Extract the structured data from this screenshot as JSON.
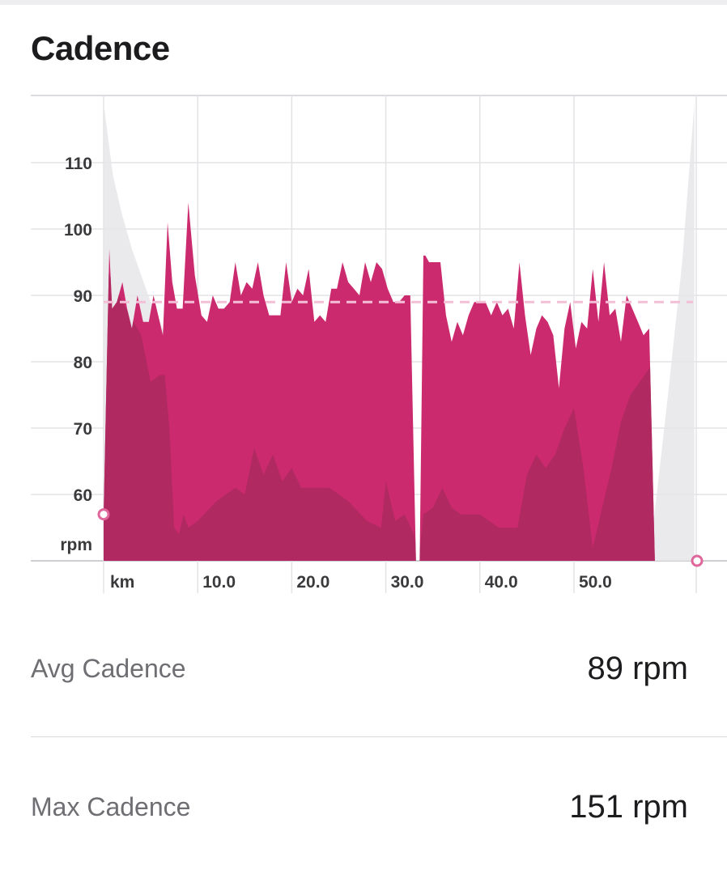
{
  "title": "Cadence",
  "chart_data": {
    "type": "area",
    "ylabel": "rpm",
    "xlabel": "km",
    "ylim": [
      50,
      120
    ],
    "xlim": [
      0,
      63
    ],
    "y_ticks": [
      60,
      70,
      80,
      90,
      100,
      110
    ],
    "x_ticks": [
      10,
      20,
      30,
      40,
      50
    ],
    "x_tick_labels": [
      "10.0",
      "20.0",
      "30.0",
      "40.0",
      "50.0"
    ],
    "grid": true,
    "average_line": 89,
    "colors": {
      "cadence": "#cc2a6e",
      "elevation_overlay": "#a82a5e",
      "elevation_background": "#e6e6e9",
      "average_line": "#f3bfd6",
      "marker": "#e0679b"
    },
    "series": [
      {
        "id": "cadence",
        "x": [
          0,
          0.6,
          0.9,
          1.4,
          2.0,
          2.5,
          3.0,
          3.6,
          4.2,
          4.8,
          5.3,
          5.8,
          6.3,
          6.8,
          7.3,
          7.8,
          8.4,
          9.0,
          9.7,
          10.4,
          11.0,
          11.6,
          12.2,
          12.8,
          13.4,
          14.0,
          14.6,
          15.2,
          15.8,
          16.4,
          17.0,
          17.6,
          18.2,
          18.8,
          19.4,
          20.0,
          20.6,
          21.2,
          21.8,
          22.4,
          23.0,
          23.6,
          24.2,
          24.8,
          25.4,
          26.0,
          26.6,
          27.2,
          27.8,
          28.4,
          29.0,
          29.6,
          30.2,
          30.8,
          31.4,
          32.0,
          32.6,
          33.2,
          33.6,
          34.0,
          34.2,
          34.6,
          35.2,
          35.8,
          36.4,
          37.0,
          37.6,
          38.2,
          38.8,
          39.4,
          40.0,
          40.6,
          41.2,
          41.8,
          42.4,
          43.0,
          43.6,
          44.2,
          44.8,
          45.4,
          46.0,
          46.6,
          47.2,
          47.8,
          48.4,
          49.0,
          49.6,
          50.2,
          50.8,
          51.4,
          52.0,
          52.6,
          53.2,
          53.8,
          54.4,
          55.0,
          55.6,
          56.2,
          56.8,
          57.4,
          58.0,
          58.6,
          59.2,
          59.8,
          60.4,
          61.0,
          61.6,
          62.3,
          62.8
        ],
        "values": [
          57,
          97,
          88,
          89,
          92,
          88,
          85,
          90,
          86,
          86,
          90,
          87,
          84,
          101,
          92,
          88,
          88,
          104,
          93,
          87,
          86,
          90,
          88,
          88,
          89,
          95,
          90,
          92,
          91,
          95,
          90,
          87,
          87,
          87,
          95,
          89,
          91,
          90,
          94,
          86,
          87,
          86,
          91,
          91,
          95,
          92,
          91,
          90,
          95,
          92,
          95,
          94,
          91,
          89,
          89,
          90,
          90,
          50,
          50,
          96,
          96,
          95,
          95,
          95,
          87,
          83,
          86,
          84,
          87,
          89,
          89,
          89,
          87,
          89,
          87,
          88,
          85,
          95,
          87,
          81,
          85,
          87,
          86,
          84,
          76,
          85,
          89,
          82,
          86,
          85,
          94,
          86,
          95,
          87,
          88,
          83,
          90,
          88,
          86,
          84,
          85,
          50,
          50,
          50,
          50,
          50,
          50,
          50,
          50
        ],
        "note_end": 50
      },
      {
        "id": "elevation_overlay",
        "x": [
          0,
          2,
          4,
          5,
          6,
          6.5,
          7,
          7.5,
          8,
          8.5,
          9,
          10,
          12,
          14,
          15,
          16,
          17,
          18,
          19,
          20,
          21,
          22,
          24,
          26,
          28,
          29.5,
          30,
          31,
          32,
          33,
          33.5,
          34,
          35,
          36,
          37,
          38,
          40,
          42,
          44,
          45,
          46,
          47,
          48,
          49,
          50,
          51,
          52,
          53,
          54,
          55,
          56,
          57,
          58,
          59,
          60,
          61,
          62,
          62.8
        ],
        "values": [
          95,
          89,
          84,
          77,
          78,
          78,
          70,
          55,
          54,
          57,
          55,
          56,
          59,
          61,
          60,
          67,
          63,
          66,
          62,
          64,
          61,
          61,
          61,
          59,
          56,
          55,
          62,
          56,
          57,
          54,
          50,
          57,
          58,
          61,
          58,
          57,
          57,
          55,
          55,
          63,
          66,
          64,
          66,
          70,
          73,
          64,
          52,
          58,
          64,
          71,
          75,
          77,
          79,
          81,
          85,
          88,
          91,
          93
        ]
      },
      {
        "id": "elevation_background",
        "x": [
          0,
          1,
          2,
          3,
          4,
          5,
          6,
          7,
          8,
          9,
          50,
          55,
          58,
          60,
          61.5,
          62.8
        ],
        "values": [
          119,
          108,
          102,
          97,
          93,
          89,
          86,
          82,
          50,
          50,
          50,
          50,
          50,
          75,
          95,
          119
        ]
      }
    ]
  },
  "stats": {
    "avg_label": "Avg Cadence",
    "avg_value": "89 rpm",
    "max_label": "Max Cadence",
    "max_value": "151 rpm"
  }
}
